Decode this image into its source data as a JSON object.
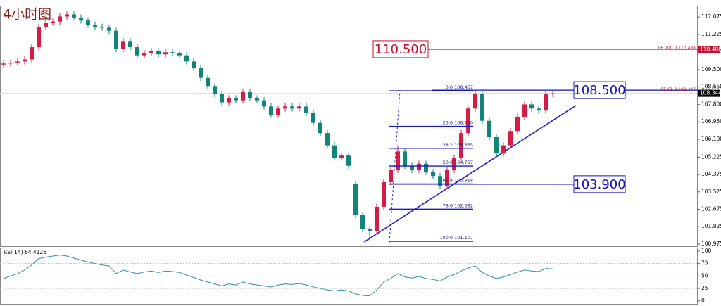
{
  "chart_data": [
    {
      "type": "candlestick",
      "title": "4小时图",
      "open": [
        109.75,
        109.8,
        109.85,
        109.9,
        110.0,
        110.6,
        111.6,
        111.8,
        111.85,
        112.1,
        112.2,
        112.05,
        111.9,
        111.7,
        111.6,
        111.55,
        111.4,
        110.5,
        110.9,
        110.6,
        110.2,
        110.3,
        110.4,
        110.25,
        110.35,
        110.3,
        110.2,
        109.9,
        109.6,
        109.1,
        108.7,
        108.3,
        107.9,
        108.1,
        108.0,
        108.4,
        108.1,
        108.0,
        107.7,
        107.3,
        107.6,
        107.7,
        107.6,
        107.7,
        107.4,
        106.9,
        106.4,
        105.8,
        105.2,
        105.3,
        103.9,
        102.4,
        101.7,
        101.6,
        102.8,
        104.0,
        104.6,
        105.5,
        104.8,
        104.6,
        104.9,
        104.5,
        104.3,
        103.8,
        104.6,
        105.2,
        106.4,
        107.6,
        108.3,
        107.0,
        106.2,
        105.4,
        105.8,
        106.5,
        107.2,
        107.8,
        107.6,
        107.5,
        108.3
      ],
      "high": [
        109.95,
        110.0,
        110.05,
        110.15,
        110.75,
        111.75,
        111.95,
        112.0,
        112.25,
        112.35,
        112.35,
        112.2,
        112.05,
        111.85,
        111.75,
        111.7,
        111.55,
        111.05,
        111.05,
        110.75,
        110.45,
        110.55,
        110.55,
        110.5,
        110.5,
        110.45,
        110.35,
        110.05,
        109.75,
        109.25,
        108.85,
        108.45,
        108.25,
        108.25,
        108.55,
        108.55,
        108.25,
        108.15,
        107.85,
        107.75,
        107.85,
        107.85,
        107.85,
        107.85,
        107.55,
        107.05,
        106.55,
        105.95,
        105.45,
        105.45,
        104.05,
        102.55,
        101.85,
        102.95,
        104.15,
        104.75,
        105.8,
        105.65,
        104.95,
        105.05,
        105.05,
        104.65,
        104.45,
        104.75,
        105.35,
        106.55,
        107.75,
        108.47,
        108.45,
        107.15,
        106.35,
        105.95,
        106.65,
        107.35,
        107.95,
        107.95,
        107.75,
        108.5,
        108.45
      ],
      "low": [
        109.6,
        109.65,
        109.7,
        109.75,
        109.85,
        110.45,
        111.45,
        111.65,
        111.7,
        111.95,
        111.9,
        111.75,
        111.55,
        111.45,
        111.4,
        111.25,
        110.35,
        110.35,
        110.45,
        110.05,
        110.05,
        110.15,
        110.1,
        110.1,
        110.15,
        110.05,
        109.75,
        109.45,
        108.95,
        108.55,
        108.15,
        107.75,
        107.75,
        107.85,
        107.85,
        107.95,
        107.85,
        107.55,
        107.15,
        107.15,
        107.45,
        107.45,
        107.45,
        107.25,
        106.75,
        106.25,
        105.65,
        105.05,
        105.05,
        104.65,
        102.25,
        101.55,
        101.11,
        101.45,
        102.65,
        103.85,
        104.45,
        104.65,
        104.45,
        104.45,
        104.35,
        104.15,
        103.65,
        103.65,
        104.45,
        105.05,
        106.25,
        107.45,
        106.85,
        106.05,
        105.25,
        105.25,
        105.65,
        106.35,
        107.05,
        107.45,
        107.35,
        107.35,
        108.15
      ],
      "close": [
        109.8,
        109.85,
        109.9,
        110.0,
        110.6,
        111.6,
        111.8,
        111.85,
        112.1,
        112.2,
        112.05,
        111.9,
        111.7,
        111.6,
        111.55,
        111.4,
        110.5,
        110.9,
        110.6,
        110.2,
        110.3,
        110.4,
        110.25,
        110.35,
        110.3,
        110.2,
        109.9,
        109.6,
        109.1,
        108.7,
        108.3,
        107.9,
        108.1,
        108.0,
        108.4,
        108.1,
        108.0,
        107.7,
        107.3,
        107.6,
        107.7,
        107.6,
        107.7,
        107.4,
        106.9,
        106.4,
        105.8,
        105.2,
        105.3,
        104.8,
        102.4,
        101.7,
        101.6,
        102.8,
        104.0,
        104.6,
        105.5,
        104.8,
        104.6,
        104.9,
        104.5,
        104.3,
        103.8,
        104.6,
        105.2,
        106.4,
        107.6,
        108.3,
        107.0,
        106.2,
        105.4,
        105.8,
        106.5,
        107.2,
        107.8,
        107.6,
        107.5,
        108.3,
        108.344
      ],
      "up_color": "#d41c46",
      "down_color": "#12857a",
      "ylim": [
        100.87,
        112.63
      ],
      "yticks": [
        112.075,
        111.225,
        110.375,
        {
          "value": 109.5,
          "label": "109.500"
        },
        {
          "value": 108.65,
          "label": "108.650"
        },
        {
          "value": 107.8,
          "label": "107.800"
        },
        {
          "value": 106.95,
          "label": "106.950"
        },
        {
          "value": 106.1,
          "label": "106.100"
        },
        105.225,
        104.375,
        103.525,
        102.675,
        101.825,
        100.975
      ],
      "levels": [
        {
          "label": "110.500",
          "value": 110.5,
          "color": "#c8102e"
        },
        {
          "label": "108.500",
          "value": 108.5,
          "color": "#1010c8"
        },
        {
          "label": "103.900",
          "value": 103.9,
          "color": "#1010c8"
        }
      ],
      "fe": [
        {
          "label": "FE 100.0  110.488",
          "value": 110.488
        },
        {
          "label": "FE 61.8  108.447",
          "value": 108.447
        }
      ],
      "fibonacci": [
        {
          "label": "0.0  108.467",
          "value": 108.467
        },
        {
          "label": "23.6  106.730",
          "value": 106.73
        },
        {
          "label": "38.2  105.655",
          "value": 105.655
        },
        {
          "label": "50.0  104.787",
          "value": 104.787
        },
        {
          "label": "61.8  103.918",
          "value": 103.918
        },
        {
          "label": "78.6  102.682",
          "value": 102.682
        },
        {
          "label": "100.0  101.107",
          "value": 101.107
        }
      ],
      "axis_tags": [
        {
          "label": "110.488",
          "value": 110.488,
          "color": "#c8102e"
        },
        {
          "label": "108.344",
          "value": 108.344,
          "color": "#000000"
        }
      ]
    },
    {
      "type": "line",
      "title": "RSI(14) 64.4126",
      "color": "#2a8fa8",
      "values": [
        45,
        50,
        55,
        62,
        72,
        85,
        88,
        90,
        92,
        90,
        86,
        82,
        78,
        75,
        72,
        70,
        55,
        62,
        58,
        55,
        58,
        60,
        57,
        60,
        59,
        57,
        52,
        47,
        42,
        38,
        34,
        30,
        34,
        32,
        38,
        34,
        32,
        30,
        28,
        32,
        34,
        33,
        35,
        32,
        28,
        25,
        22,
        20,
        22,
        20,
        14,
        11,
        10,
        22,
        38,
        45,
        55,
        48,
        46,
        49,
        45,
        43,
        40,
        48,
        53,
        60,
        66,
        70,
        57,
        50,
        45,
        48,
        53,
        58,
        62,
        60,
        59,
        65,
        64.41
      ],
      "ylim": [
        -6,
        107
      ],
      "yticks": [
        100,
        75,
        50,
        25,
        0
      ],
      "grid": true
    }
  ]
}
